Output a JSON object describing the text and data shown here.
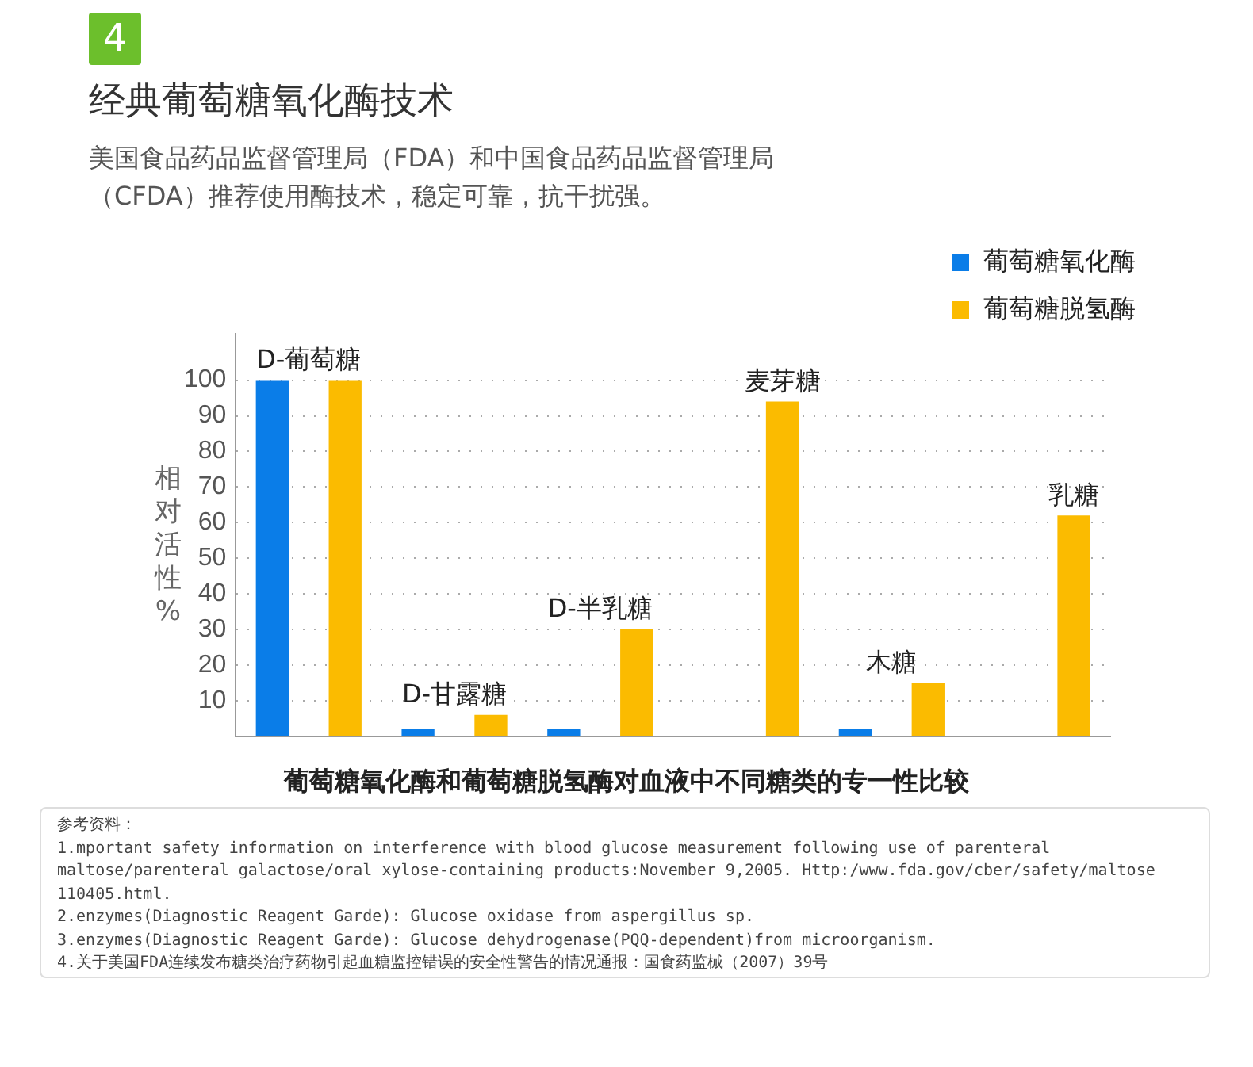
{
  "chart_data": {
    "type": "bar",
    "title": "经典葡萄糖氧化酶技术",
    "subtitle": "美国食品药品监督管理局（FDA）和中国食品药品监督管理局（CFDA）推荐使用酶技术，稳定可靠，抗干扰强。",
    "xlabel": "葡萄糖氧化酶和葡萄糖脱氢酶对血液中不同糖类的专一性比较",
    "ylabel": "相对活性%",
    "categories": [
      "D-葡萄糖",
      "D-甘露糖",
      "D-半乳糖",
      "麦芽糖",
      "木糖",
      "乳糖"
    ],
    "series": [
      {
        "name": "葡萄糖氧化酶",
        "color": "#0a7de8",
        "values": [
          100,
          2,
          2,
          null,
          2,
          null
        ]
      },
      {
        "name": "葡萄糖脱氢酶",
        "color": "#fbbb00",
        "values": [
          100,
          6,
          30,
          94,
          15,
          62
        ]
      }
    ],
    "ylim": [
      0,
      113
    ],
    "yticks": [
      10,
      20,
      30,
      40,
      50,
      60,
      70,
      80,
      90,
      100
    ],
    "grid": "y",
    "line_style": "dotted",
    "legend": "top right",
    "annotations": [
      "4",
      "参考资料：",
      "1.mportant safety information on interference with blood glucose measurement following use of parenteral maltose/parenteral galactose/oral xylose-containing products:November 9,2005.  Http:/www.fda.gov/cber/safety/maltose 110405.html.",
      "2.enzymes(Diagnostic Reagent Garde): Glucose oxidase from aspergillus sp.",
      "3.enzymes(Diagnostic Reagent Garde): Glucose dehydrogenase(PQQ-dependent)from microorganism.",
      "4.关于美国FDA连续发布糖类治疗药物引起血糖监控错误的安全性警告的情况通报：国食药监械（2007）39号"
    ]
  }
}
